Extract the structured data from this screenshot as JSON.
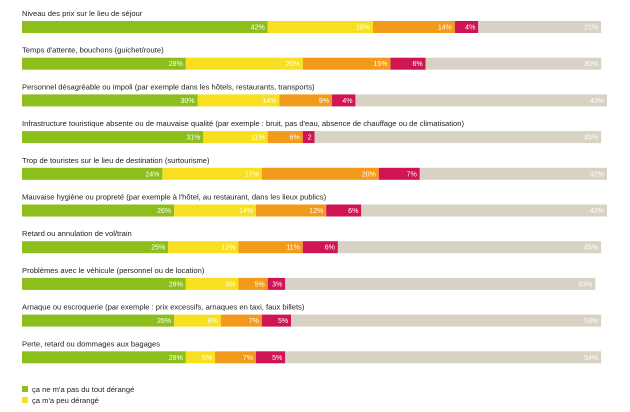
{
  "chart_data": {
    "type": "bar",
    "stacked": true,
    "orientation": "horizontal",
    "xlim": [
      0,
      100
    ],
    "unit": "%",
    "categories": [
      "Niveau des prix sur le lieu de séjour",
      "Temps d'attente, bouchons (guichet/route)",
      "Personnel désagréable ou impoli (par exemple dans les hôtels, restaurants, transports)",
      "Infrastructure touristique absente ou de mauvaise qualité (par exemple : bruit, pas d'eau, absence de chauffage ou de climatisation)",
      "Trop de touristes sur le lieu de destination (surtourisme)",
      "Mauvaise hygiène ou propreté (par exemple à l'hôtel, au restaurant, dans les lieux publics)",
      "Retard ou annulation de vol/train",
      "Problèmes avec le véhicule (personnel ou de location)",
      "Arnaque ou escroquerie (par exemple : prix excessifs, arnaques en taxi, faux billets)",
      "Perte, retard ou dommages aux bagages"
    ],
    "series": [
      {
        "name": "ça ne m'a pas du tout dérangé",
        "color": "#8dbf1c",
        "values": [
          42,
          28,
          30,
          31,
          24,
          26,
          25,
          28,
          26,
          28
        ]
      },
      {
        "name": "ça m'a peu dérangé",
        "color": "#f8e020",
        "values": [
          18,
          20,
          14,
          11,
          17,
          14,
          12,
          9,
          8,
          5
        ]
      },
      {
        "name": "",
        "color": "#f29a1c",
        "values": [
          14,
          15,
          9,
          6,
          20,
          12,
          11,
          5,
          7,
          7
        ]
      },
      {
        "name": "",
        "color": "#cf1553",
        "values": [
          4,
          6,
          4,
          2,
          7,
          6,
          6,
          3,
          5,
          5
        ]
      },
      {
        "name": "",
        "color": "#d8d2c4",
        "values": [
          21,
          30,
          43,
          49,
          32,
          42,
          45,
          53,
          53,
          54
        ]
      }
    ],
    "value_labels": [
      [
        "42%",
        "18%",
        "14%",
        "4%",
        "21%"
      ],
      [
        "28%",
        "20%",
        "15%",
        "6%",
        "30%"
      ],
      [
        "30%",
        "14%",
        "9%",
        "4%",
        "43%"
      ],
      [
        "31%",
        "11%",
        "6%",
        "2",
        "49%"
      ],
      [
        "24%",
        "17%",
        "20%",
        "7%",
        "32%"
      ],
      [
        "26%",
        "14%",
        "12%",
        "6%",
        "42%"
      ],
      [
        "25%",
        "12%",
        "11%",
        "6%",
        "45%"
      ],
      [
        "28%",
        "9%",
        "5%",
        "3%",
        "53%"
      ],
      [
        "26%",
        "8%",
        "7%",
        "5%",
        "53%"
      ],
      [
        "28%",
        "5%",
        "7%",
        "5%",
        "54%"
      ]
    ],
    "legend_position": "bottom-left"
  }
}
